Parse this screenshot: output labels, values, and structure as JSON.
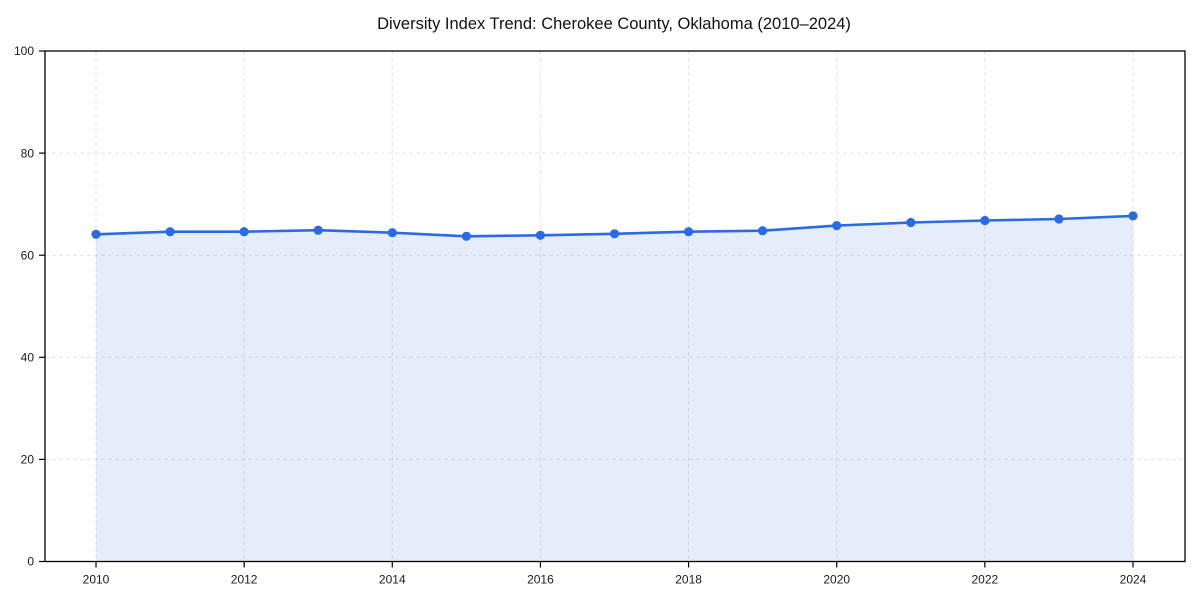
{
  "chart_data": {
    "type": "area",
    "title": "Diversity Index Trend: Cherokee County, Oklahoma (2010–2024)",
    "xlabel": "",
    "ylabel": "",
    "x": [
      2010,
      2011,
      2012,
      2013,
      2014,
      2015,
      2016,
      2017,
      2018,
      2019,
      2020,
      2021,
      2022,
      2023,
      2024
    ],
    "series": [
      {
        "name": "Diversity Index",
        "values": [
          64.1,
          64.6,
          64.6,
          64.9,
          64.4,
          63.7,
          63.9,
          64.2,
          64.6,
          64.8,
          65.8,
          66.4,
          66.8,
          67.1,
          67.7
        ]
      }
    ],
    "xticks": [
      2010,
      2012,
      2014,
      2016,
      2018,
      2020,
      2022,
      2024
    ],
    "yticks": [
      0,
      20,
      40,
      60,
      80,
      100
    ],
    "ylim": [
      0,
      100
    ],
    "grid": true,
    "grid_style": "dashed",
    "legend": false,
    "colors": {
      "line": "#2b6ae2",
      "marker": "#2b6ae2",
      "fill": "#2b6ae2",
      "fill_opacity": 0.12,
      "grid": "#e4e4e4",
      "axis": "#000000",
      "tick_label": "#1a1a1a",
      "title": "#111111",
      "background": "#ffffff"
    }
  }
}
